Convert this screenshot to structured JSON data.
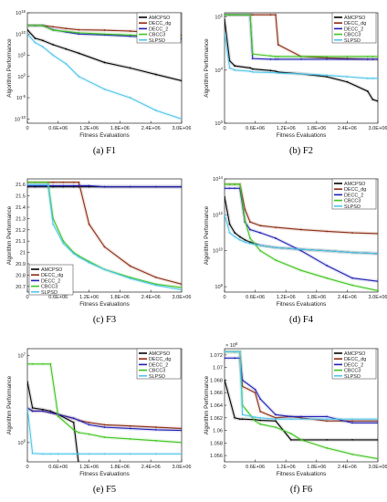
{
  "figure": {
    "captions": [
      "(a) F1",
      "(b) F2",
      "(c) F3",
      "(d) F4",
      "(e) F5",
      "(f) F6"
    ],
    "legend_entries": [
      "AMCPSO",
      "DECC_dg",
      "DECC_2",
      "CBCC3",
      "SLPSO"
    ],
    "colors": {
      "AMCPSO": "#000000",
      "DECC_dg": "#8b2a10",
      "DECC_2": "#1f1fb4",
      "CBCC3": "#3ec41e",
      "SLPSO": "#4fc6ea"
    }
  },
  "chart_data": [
    {
      "type": "line",
      "title": "(a) F1",
      "xlabel": "Fitness Evaluations",
      "ylabel": "Algorithm Performance",
      "yscale": "log",
      "ylim": [
        1e-11,
        1000000000000000.0
      ],
      "xlim": [
        0,
        3000000
      ],
      "x_ticks": [
        "0",
        "0.6E+06",
        "1.2E+06",
        "1.8E+06",
        "2.4E+06",
        "3.0E+06"
      ],
      "y_ticks": [
        "10^-10",
        "10^-5",
        "10^0",
        "10^5",
        "10^10",
        "10^15"
      ],
      "legend_position": "top-right",
      "x": [
        0,
        150000,
        300000,
        500000,
        750000,
        1000000,
        1500000,
        2000000,
        2500000,
        3000000
      ],
      "series": [
        {
          "name": "AMCPSO",
          "values": [
            100000000000.0,
            1000000000.0,
            300000000.0,
            30000000.0,
            3000000.0,
            300000.0,
            2000.0,
            100.0,
            3,
            0.1
          ]
        },
        {
          "name": "DECC_dg",
          "values": [
            1000000000000.0,
            1000000000000.0,
            1000000000000.0,
            500000000000.0,
            200000000000.0,
            100000000000.0,
            80000000000.0,
            50000000000.0,
            20000000000.0,
            5000000000.0
          ]
        },
        {
          "name": "DECC_2",
          "values": [
            1000000000000.0,
            1000000000000.0,
            1000000000000.0,
            100000000000.0,
            30000000000.0,
            10000000000.0,
            6000000000.0,
            3000000000.0,
            1500000000.0,
            800000000.0
          ]
        },
        {
          "name": "CBCC3",
          "values": [
            1000000000000.0,
            1000000000000.0,
            1000000000000.0,
            80000000000.0,
            40000000000.0,
            20000000000.0,
            10000000000.0,
            6000000000.0,
            3000000000.0,
            2000000000.0
          ]
        },
        {
          "name": "SLPSO",
          "values": [
            10000000000.0,
            100000000.0,
            10000000.0,
            100000.0,
            1000.0,
            1.0,
            0.001,
            1e-05,
            1e-08,
            1e-10
          ]
        }
      ]
    },
    {
      "type": "line",
      "title": "(b) F2",
      "xlabel": "Fitness Evaluations",
      "ylabel": "Algorithm Performance",
      "yscale": "log",
      "ylim": [
        1000,
        120000
      ],
      "xlim": [
        0,
        3000000
      ],
      "x_ticks": [
        "0",
        "0.6E+06",
        "1.2E+06",
        "1.8E+06",
        "2.4E+06",
        "3.0E+06"
      ],
      "y_ticks": [
        "10^3",
        "10^4",
        "10^5"
      ],
      "legend_position": "top-right",
      "x": [
        0,
        100000,
        200000,
        500000,
        550000,
        900000,
        1000000,
        1050000,
        1500000,
        2000000,
        2400000,
        2800000,
        2900000,
        3000000
      ],
      "series": [
        {
          "name": "AMCPSO",
          "values": [
            90000,
            15000,
            12000,
            11000,
            10500,
            9800,
            9500,
            9200,
            8500,
            7500,
            6000,
            4000,
            2800,
            2600
          ]
        },
        {
          "name": "DECC_dg",
          "values": [
            110000,
            110000,
            110000,
            110000,
            110000,
            110000,
            110000,
            30000,
            18000,
            17000,
            16500,
            16000,
            16000,
            16000
          ]
        },
        {
          "name": "DECC_2",
          "values": [
            110000,
            110000,
            110000,
            110000,
            16500,
            16000,
            16000,
            16000,
            16000,
            16000,
            16000,
            16000,
            16000,
            16000
          ]
        },
        {
          "name": "CBCC3",
          "values": [
            110000,
            110000,
            110000,
            110000,
            20000,
            18500,
            18000,
            18000,
            18000,
            18000,
            18000,
            18000,
            18000,
            18000
          ]
        },
        {
          "name": "SLPSO",
          "values": [
            50000,
            11000,
            10000,
            9500,
            9200,
            9000,
            8900,
            8800,
            8500,
            8000,
            7500,
            7000,
            7000,
            7000
          ]
        }
      ]
    },
    {
      "type": "line",
      "title": "(c) F3",
      "xlabel": "Fitness Evaluations",
      "ylabel": "Algorithm Performance",
      "yscale": "linear",
      "ylim": [
        20.65,
        21.65
      ],
      "xlim": [
        0,
        3000000
      ],
      "x_ticks": [
        "0",
        "0.6E+06",
        "1.2E+06",
        "1.8E+06",
        "2.4E+06",
        "3.0E+06"
      ],
      "y_ticks": [
        "20.7",
        "20.8",
        "20.9",
        "21",
        "21.1",
        "21.2",
        "21.3",
        "21.4",
        "21.5",
        "21.6"
      ],
      "legend_position": "bottom-left",
      "x": [
        0,
        150000,
        400000,
        500000,
        700000,
        900000,
        1000000,
        1200000,
        1500000,
        2000000,
        2500000,
        3000000
      ],
      "series": [
        {
          "name": "AMCPSO",
          "values": [
            21.58,
            21.58,
            21.58,
            21.58,
            21.58,
            21.58,
            21.58,
            21.58,
            21.58,
            21.58,
            21.58,
            21.58
          ]
        },
        {
          "name": "DECC_dg",
          "values": [
            21.62,
            21.62,
            21.62,
            21.62,
            21.62,
            21.62,
            21.62,
            21.25,
            21.05,
            20.88,
            20.78,
            20.72
          ]
        },
        {
          "name": "DECC_2",
          "values": [
            21.59,
            21.59,
            21.59,
            21.59,
            21.59,
            21.59,
            21.59,
            21.59,
            21.58,
            21.58,
            21.58,
            21.58
          ]
        },
        {
          "name": "CBCC3",
          "values": [
            21.62,
            21.62,
            21.62,
            21.3,
            21.1,
            21.0,
            20.97,
            20.92,
            20.85,
            20.78,
            20.72,
            20.69
          ]
        },
        {
          "name": "SLPSO",
          "values": [
            21.6,
            21.6,
            21.6,
            21.25,
            21.08,
            20.99,
            20.96,
            20.91,
            20.85,
            20.77,
            20.71,
            20.67
          ]
        }
      ]
    },
    {
      "type": "line",
      "title": "(d) F4",
      "xlabel": "Fitness Evaluations",
      "ylabel": "Algorithm Performance",
      "yscale": "log",
      "ylim": [
        50000000.0,
        100000000000000.0
      ],
      "xlim": [
        0,
        3000000
      ],
      "x_ticks": [
        "0",
        "0.6E+06",
        "1.2E+06",
        "1.8E+06",
        "2.4E+06",
        "3.0E+06"
      ],
      "y_ticks": [
        "10^8",
        "10^10",
        "10^12",
        "10^14"
      ],
      "legend_position": "top-right",
      "x": [
        0,
        100000,
        200000,
        300000,
        400000,
        500000,
        700000,
        1000000,
        1500000,
        2000000,
        2500000,
        3000000
      ],
      "series": [
        {
          "name": "AMCPSO",
          "values": [
            10000000000000.0,
            300000000000.0,
            100000000000.0,
            60000000000.0,
            40000000000.0,
            30000000000.0,
            20000000000.0,
            15000000000.0,
            12000000000.0,
            10000000000.0,
            8000000000.0,
            7000000000.0
          ]
        },
        {
          "name": "DECC_dg",
          "values": [
            50000000000000.0,
            50000000000000.0,
            50000000000000.0,
            50000000000000.0,
            2000000000000.0,
            400000000000.0,
            250000000000.0,
            200000000000.0,
            150000000000.0,
            120000000000.0,
            100000000000.0,
            90000000000.0
          ]
        },
        {
          "name": "DECC_2",
          "values": [
            30000000000000.0,
            30000000000000.0,
            30000000000000.0,
            30000000000000.0,
            400000000000.0,
            150000000000.0,
            100000000000.0,
            50000000000.0,
            10000000000.0,
            1500000000.0,
            300000000.0,
            200000000.0
          ]
        },
        {
          "name": "CBCC3",
          "values": [
            50000000000000.0,
            50000000000000.0,
            50000000000000.0,
            50000000000000.0,
            500000000000.0,
            50000000000.0,
            10000000000.0,
            3000000000.0,
            800000000.0,
            300000000.0,
            120000000.0,
            60000000.0
          ]
        },
        {
          "name": "SLPSO",
          "values": [
            1000000000000.0,
            100000000000.0,
            60000000000.0,
            40000000000.0,
            30000000000.0,
            25000000000.0,
            20000000000.0,
            15000000000.0,
            12000000000.0,
            10000000000.0,
            8000000000.0,
            7000000000.0
          ]
        }
      ]
    },
    {
      "type": "line",
      "title": "(e) F5",
      "xlabel": "Fitness Evaluations",
      "ylabel": "Algorithm Performance",
      "yscale": "log",
      "ylim": [
        600000,
        12000000
      ],
      "xlim": [
        0,
        3000000
      ],
      "x_ticks": [
        "0",
        "0.6E+06",
        "1.2E+06",
        "1.8E+06",
        "2.4E+06",
        "3.0E+06"
      ],
      "y_ticks": [
        "10^6",
        "10^7"
      ],
      "legend_position": "top-right",
      "x": [
        0,
        100000,
        300000,
        450000,
        600000,
        900000,
        1000000,
        1200000,
        1500000,
        2000000,
        2500000,
        3000000
      ],
      "series": [
        {
          "name": "AMCPSO",
          "values": [
            5000000,
            2500000,
            2400000,
            2300000,
            2100000,
            1700000,
            550000,
            530000,
            525000,
            520000,
            520000,
            520000
          ]
        },
        {
          "name": "DECC_dg",
          "values": [
            2500000,
            2300000,
            2300000,
            2200000,
            2100000,
            1900000,
            1800000,
            1700000,
            1600000,
            1550000,
            1500000,
            1450000
          ]
        },
        {
          "name": "DECC_2",
          "values": [
            2500000,
            2300000,
            2300000,
            2200000,
            2100000,
            1900000,
            1800000,
            1600000,
            1500000,
            1450000,
            1400000,
            1380000
          ]
        },
        {
          "name": "CBCC3",
          "values": [
            8000000,
            8000000,
            8000000,
            8000000,
            2000000,
            1400000,
            1300000,
            1250000,
            1150000,
            1100000,
            1050000,
            1000000
          ]
        },
        {
          "name": "SLPSO",
          "values": [
            2500000,
            750000,
            740000,
            740000,
            740000,
            740000,
            740000,
            740000,
            740000,
            740000,
            740000,
            740000
          ]
        }
      ]
    },
    {
      "type": "line",
      "title": "(f) F6",
      "xlabel": "Fitness Evaluations",
      "ylabel": "Algorithm Performance",
      "yscale": "linear",
      "y_multiplier": "x 10^6",
      "ylim": [
        1.055,
        1.073
      ],
      "xlim": [
        0,
        3000000
      ],
      "x_ticks": [
        "0",
        "0.6E+06",
        "1.2E+06",
        "1.8E+06",
        "2.4E+06",
        "3.0E+06"
      ],
      "y_ticks": [
        "1.056",
        "1.058",
        "1.06",
        "1.062",
        "1.064",
        "1.066",
        "1.068",
        "1.07",
        "1.072"
      ],
      "legend_position": "top-right",
      "x": [
        0,
        200000,
        300000,
        350000,
        600000,
        700000,
        1000000,
        1300000,
        1500000,
        2000000,
        2500000,
        3000000
      ],
      "series": [
        {
          "name": "AMCPSO",
          "values": [
            1.068,
            1.062,
            1.0618,
            1.0618,
            1.0617,
            1.0616,
            1.0615,
            1.0585,
            1.0585,
            1.0585,
            1.0585,
            1.0585
          ]
        },
        {
          "name": "DECC_dg",
          "values": [
            1.0725,
            1.0725,
            1.0725,
            1.067,
            1.066,
            1.063,
            1.062,
            1.0622,
            1.062,
            1.0615,
            1.0615,
            1.0615
          ]
        },
        {
          "name": "DECC_2",
          "values": [
            1.0715,
            1.0715,
            1.0715,
            1.068,
            1.0665,
            1.065,
            1.0625,
            1.0622,
            1.0622,
            1.0622,
            1.0612,
            1.0612
          ]
        },
        {
          "name": "CBCC3",
          "values": [
            1.0725,
            1.0725,
            1.0725,
            1.064,
            1.0615,
            1.061,
            1.0605,
            1.0595,
            1.0585,
            1.0572,
            1.0562,
            1.0555
          ]
        },
        {
          "name": "SLPSO",
          "values": [
            1.0725,
            1.0725,
            1.0725,
            1.0625,
            1.0621,
            1.062,
            1.0618,
            1.0618,
            1.0618,
            1.0618,
            1.0618,
            1.0618
          ]
        }
      ]
    }
  ]
}
